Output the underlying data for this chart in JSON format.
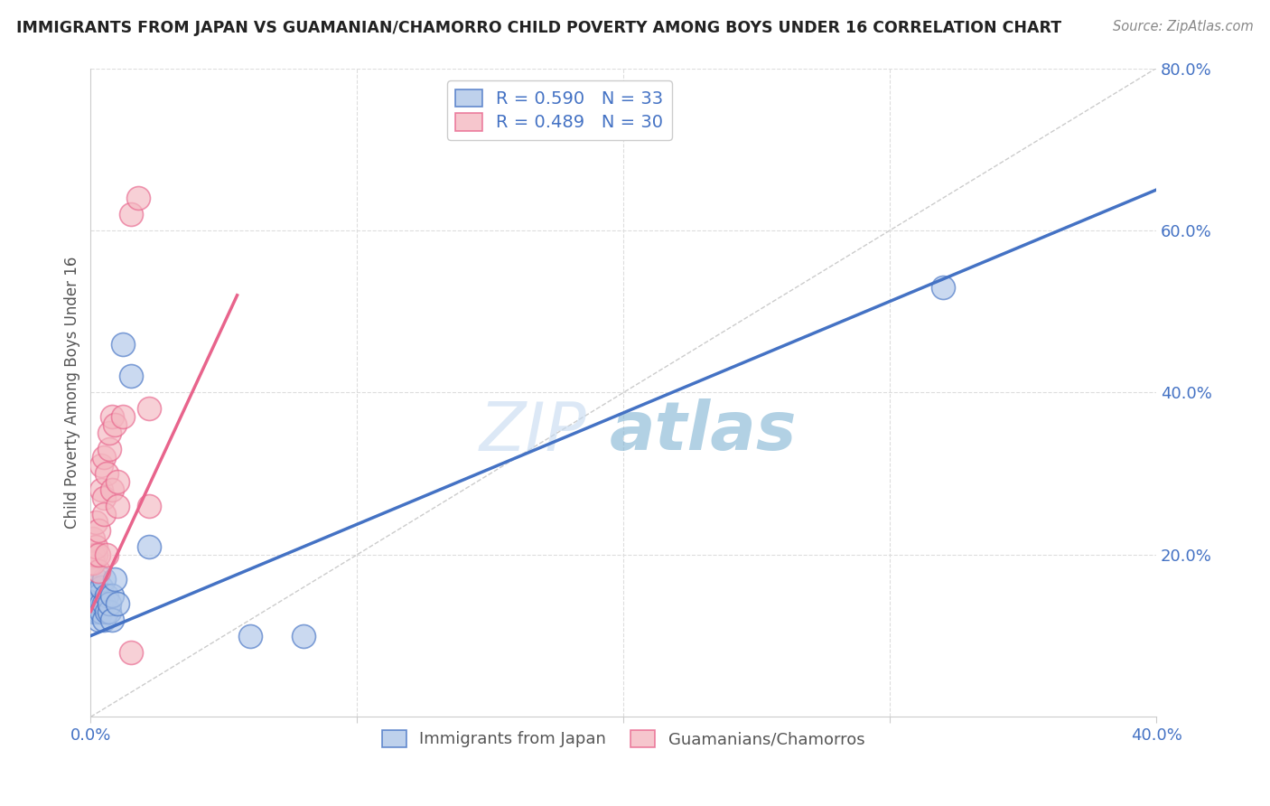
{
  "title": "IMMIGRANTS FROM JAPAN VS GUAMANIAN/CHAMORRO CHILD POVERTY AMONG BOYS UNDER 16 CORRELATION CHART",
  "source": "Source: ZipAtlas.com",
  "ylabel": "Child Poverty Among Boys Under 16",
  "watermark_zip": "ZIP",
  "watermark_atlas": "atlas",
  "blue_label": "Immigrants from Japan",
  "pink_label": "Guamanians/Chamorros",
  "blue_R": 0.59,
  "blue_N": 33,
  "pink_R": 0.489,
  "pink_N": 30,
  "blue_face_color": "#aec6e8",
  "blue_edge_color": "#4472c4",
  "pink_face_color": "#f4b8c1",
  "pink_edge_color": "#e8648c",
  "blue_line_color": "#4472c4",
  "pink_line_color": "#e8648c",
  "xmin": 0.0,
  "xmax": 0.4,
  "ymin": 0.0,
  "ymax": 0.8,
  "blue_x": [
    0.0,
    0.001,
    0.001,
    0.001,
    0.001,
    0.002,
    0.002,
    0.002,
    0.002,
    0.003,
    0.003,
    0.003,
    0.003,
    0.004,
    0.004,
    0.004,
    0.005,
    0.005,
    0.005,
    0.006,
    0.006,
    0.007,
    0.007,
    0.008,
    0.008,
    0.009,
    0.01,
    0.012,
    0.015,
    0.06,
    0.08,
    0.32,
    0.022
  ],
  "blue_y": [
    0.135,
    0.13,
    0.15,
    0.14,
    0.16,
    0.13,
    0.14,
    0.15,
    0.17,
    0.13,
    0.14,
    0.12,
    0.15,
    0.14,
    0.16,
    0.13,
    0.12,
    0.17,
    0.14,
    0.13,
    0.15,
    0.13,
    0.14,
    0.12,
    0.15,
    0.17,
    0.14,
    0.46,
    0.42,
    0.1,
    0.1,
    0.53,
    0.21
  ],
  "pink_x": [
    0.0,
    0.001,
    0.001,
    0.001,
    0.002,
    0.002,
    0.002,
    0.003,
    0.003,
    0.003,
    0.004,
    0.004,
    0.005,
    0.005,
    0.005,
    0.006,
    0.006,
    0.007,
    0.007,
    0.008,
    0.008,
    0.009,
    0.01,
    0.01,
    0.012,
    0.015,
    0.018,
    0.022,
    0.022,
    0.015
  ],
  "pink_y": [
    0.19,
    0.2,
    0.22,
    0.19,
    0.2,
    0.21,
    0.24,
    0.18,
    0.23,
    0.2,
    0.28,
    0.31,
    0.27,
    0.32,
    0.25,
    0.3,
    0.2,
    0.33,
    0.35,
    0.28,
    0.37,
    0.36,
    0.26,
    0.29,
    0.37,
    0.62,
    0.64,
    0.38,
    0.26,
    0.08
  ],
  "right_yticks": [
    0.0,
    0.2,
    0.4,
    0.6,
    0.8
  ],
  "right_ytick_labels": [
    "",
    "20.0%",
    "40.0%",
    "60.0%",
    "80.0%"
  ],
  "xtick_vals": [
    0.0,
    0.1,
    0.2,
    0.3,
    0.4
  ],
  "xtick_labels": [
    "0.0%",
    "",
    "",
    "",
    "40.0%"
  ],
  "blue_line_x0": 0.0,
  "blue_line_x1": 0.4,
  "blue_line_y0": 0.1,
  "blue_line_y1": 0.65,
  "pink_line_x0": 0.0,
  "pink_line_x1": 0.055,
  "pink_line_y0": 0.13,
  "pink_line_y1": 0.52
}
